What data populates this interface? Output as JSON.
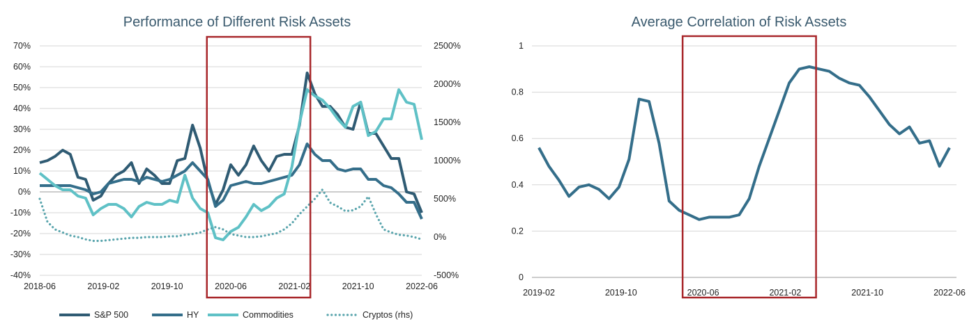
{
  "chart_data": [
    {
      "type": "line",
      "title": "Performance of Different Risk Assets",
      "xlabel": "",
      "ylabel": "",
      "ylim": [
        -0.4,
        0.7
      ],
      "y2lim": [
        -5.0,
        25.0
      ],
      "yticks": [
        "70%",
        "60%",
        "50%",
        "40%",
        "30%",
        "20%",
        "10%",
        "0%",
        "-10%",
        "-20%",
        "-30%",
        "-40%"
      ],
      "y2ticks": [
        "2500%",
        "2000%",
        "1500%",
        "1000%",
        "500%",
        "0%",
        "-500%"
      ],
      "xticks": [
        "2018-06",
        "2019-02",
        "2019-10",
        "2020-06",
        "2021-02",
        "2021-10",
        "2022-06"
      ],
      "grid": true,
      "legend": "bottom",
      "highlight_box": {
        "x_from": "2020-03",
        "x_to": "2021-04"
      },
      "colors": {
        "sp500": "#2f5b73",
        "hy": "#346e8a",
        "commodities": "#5fc1c6",
        "cryptos": "#5aa5ad",
        "box": "#a8262a"
      },
      "series": [
        {
          "name": "S&P 500",
          "axis": "left",
          "style": "solid",
          "values": [
            0.14,
            0.15,
            0.17,
            0.2,
            0.18,
            0.07,
            0.06,
            -0.04,
            -0.02,
            0.04,
            0.08,
            0.1,
            0.14,
            0.04,
            0.11,
            0.08,
            0.04,
            0.04,
            0.15,
            0.16,
            0.32,
            0.21,
            0.05,
            -0.06,
            0.01,
            0.13,
            0.08,
            0.13,
            0.22,
            0.15,
            0.1,
            0.17,
            0.18,
            0.18,
            0.32,
            0.57,
            0.47,
            0.41,
            0.41,
            0.37,
            0.31,
            0.3,
            0.43,
            0.28,
            0.28,
            0.22,
            0.16,
            0.16,
            0.0,
            -0.01,
            -0.1
          ]
        },
        {
          "name": "HY",
          "axis": "left",
          "style": "solid",
          "values": [
            0.03,
            0.03,
            0.03,
            0.03,
            0.03,
            0.02,
            0.01,
            -0.01,
            0.0,
            0.04,
            0.05,
            0.06,
            0.06,
            0.05,
            0.07,
            0.06,
            0.05,
            0.06,
            0.08,
            0.1,
            0.14,
            0.1,
            0.06,
            -0.07,
            -0.04,
            0.03,
            0.04,
            0.05,
            0.04,
            0.04,
            0.05,
            0.06,
            0.07,
            0.08,
            0.13,
            0.23,
            0.18,
            0.15,
            0.15,
            0.11,
            0.1,
            0.11,
            0.11,
            0.06,
            0.06,
            0.03,
            0.02,
            -0.01,
            -0.05,
            -0.05,
            -0.13
          ]
        },
        {
          "name": "Commodities",
          "axis": "left",
          "style": "solid",
          "values": [
            0.09,
            0.06,
            0.03,
            0.01,
            0.01,
            -0.02,
            -0.03,
            -0.11,
            -0.08,
            -0.06,
            -0.06,
            -0.08,
            -0.12,
            -0.07,
            -0.05,
            -0.06,
            -0.06,
            -0.04,
            -0.05,
            0.08,
            -0.03,
            -0.08,
            -0.1,
            -0.22,
            -0.23,
            -0.19,
            -0.17,
            -0.12,
            -0.06,
            -0.09,
            -0.07,
            -0.03,
            -0.01,
            0.12,
            0.33,
            0.49,
            0.46,
            0.44,
            0.4,
            0.35,
            0.31,
            0.41,
            0.43,
            0.27,
            0.29,
            0.35,
            0.35,
            0.49,
            0.43,
            0.42,
            0.25
          ]
        },
        {
          "name": "Cryptos (rhs)",
          "axis": "right",
          "style": "dotted",
          "values": [
            5.0,
            2.0,
            1.0,
            0.6,
            0.2,
            0.0,
            -0.3,
            -0.5,
            -0.5,
            -0.4,
            -0.3,
            -0.2,
            -0.1,
            -0.1,
            0.0,
            0.0,
            0.0,
            0.1,
            0.1,
            0.3,
            0.4,
            0.6,
            1.0,
            1.3,
            1.0,
            0.4,
            0.2,
            0.0,
            0.0,
            0.1,
            0.3,
            0.5,
            1.0,
            1.8,
            3.0,
            4.0,
            5.0,
            6.2,
            4.5,
            4.0,
            3.4,
            3.5,
            4.0,
            5.3,
            3.0,
            1.0,
            0.6,
            0.3,
            0.2,
            0.0,
            -0.3
          ]
        }
      ]
    },
    {
      "type": "line",
      "title": "Average Correlation of Risk Assets",
      "xlabel": "",
      "ylabel": "",
      "ylim": [
        0,
        1
      ],
      "yticks": [
        "0",
        "0.2",
        "0.4",
        "0.6",
        "0.8",
        "1"
      ],
      "xticks": [
        "2019-02",
        "2019-10",
        "2020-06",
        "2021-02",
        "2021-10",
        "2022-06"
      ],
      "grid": true,
      "highlight_box": {
        "x_from": "2020-04",
        "x_to": "2021-05"
      },
      "colors": {
        "line": "#346e8a",
        "box": "#a8262a"
      },
      "series": [
        {
          "name": "",
          "values": [
            0.56,
            0.48,
            0.42,
            0.35,
            0.39,
            0.4,
            0.38,
            0.34,
            0.39,
            0.51,
            0.77,
            0.76,
            0.58,
            0.33,
            0.29,
            0.27,
            0.25,
            0.26,
            0.26,
            0.26,
            0.27,
            0.34,
            0.48,
            0.6,
            0.72,
            0.84,
            0.9,
            0.91,
            0.9,
            0.89,
            0.86,
            0.84,
            0.83,
            0.78,
            0.72,
            0.66,
            0.62,
            0.65,
            0.58,
            0.59,
            0.48,
            0.56
          ]
        }
      ]
    }
  ]
}
